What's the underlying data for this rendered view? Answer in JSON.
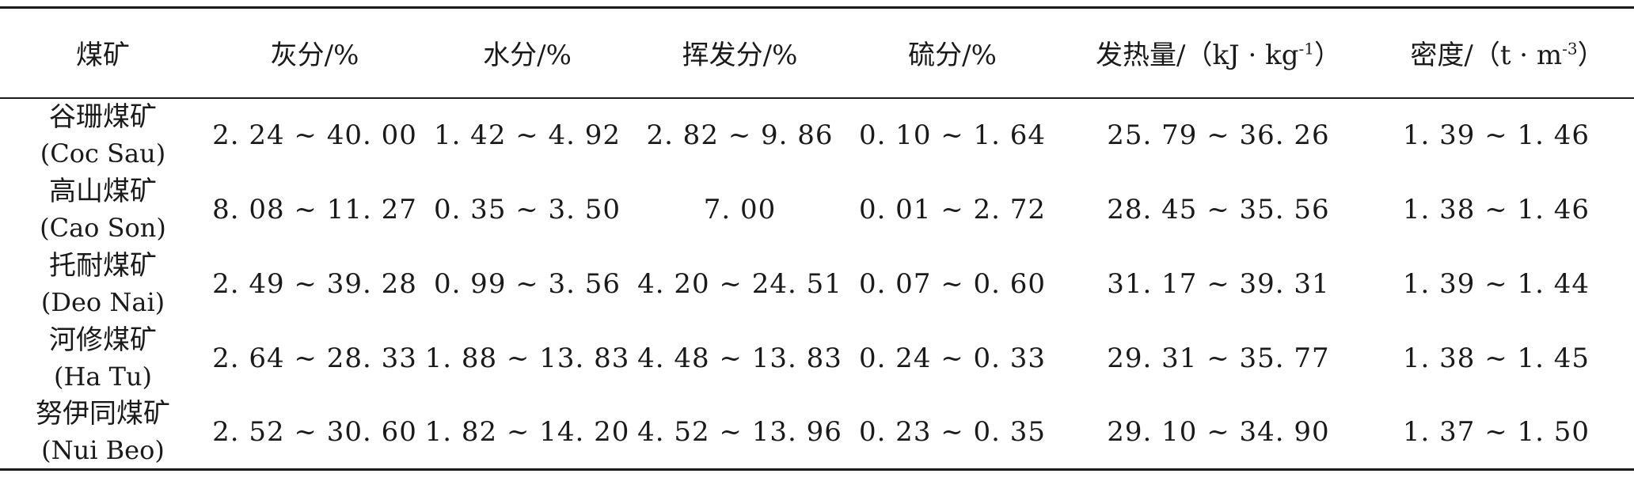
{
  "table": {
    "headers": [
      {
        "key": "mine",
        "label": "煤矿",
        "unit_base": "",
        "unit_sup": "",
        "unit_end": ""
      },
      {
        "key": "ash",
        "label": "灰分/%",
        "unit_base": "",
        "unit_sup": "",
        "unit_end": ""
      },
      {
        "key": "moisture",
        "label": "水分/%",
        "unit_base": "",
        "unit_sup": "",
        "unit_end": ""
      },
      {
        "key": "volatile",
        "label": "挥发分/%",
        "unit_base": "",
        "unit_sup": "",
        "unit_end": ""
      },
      {
        "key": "sulfur",
        "label": "硫分/%",
        "unit_base": "",
        "unit_sup": "",
        "unit_end": ""
      },
      {
        "key": "calorific",
        "label": "发热量/（kJ · kg",
        "unit_base": "",
        "unit_sup": "-1",
        "unit_end": "）"
      },
      {
        "key": "density",
        "label": "密度/（t · m",
        "unit_base": "",
        "unit_sup": "-3",
        "unit_end": "）"
      }
    ],
    "rows": [
      {
        "mine_cn": "谷珊煤矿",
        "mine_en": "(Coc Sau)",
        "ash": "2. 24 ~ 40. 00",
        "moisture": "1. 42 ~ 4. 92",
        "volatile": "2. 82 ~ 9. 86",
        "sulfur": "0. 10 ~ 1. 64",
        "calorific": "25. 79 ~ 36. 26",
        "density": "1. 39 ~ 1. 46"
      },
      {
        "mine_cn": "高山煤矿",
        "mine_en": "(Cao Son)",
        "ash": "8. 08 ~ 11. 27",
        "moisture": "0. 35 ~ 3. 50",
        "volatile": "7. 00",
        "sulfur": "0. 01 ~ 2. 72",
        "calorific": "28. 45 ~ 35. 56",
        "density": "1. 38 ~ 1. 46"
      },
      {
        "mine_cn": "托耐煤矿",
        "mine_en": "(Deo Nai)",
        "ash": "2. 49 ~ 39. 28",
        "moisture": "0. 99 ~ 3. 56",
        "volatile": "4. 20 ~ 24. 51",
        "sulfur": "0. 07 ~ 0. 60",
        "calorific": "31. 17 ~ 39. 31",
        "density": "1. 39 ~ 1. 44"
      },
      {
        "mine_cn": "河修煤矿",
        "mine_en": "(Ha Tu)",
        "ash": "2. 64 ~ 28. 33",
        "moisture": "1. 88 ~ 13. 83",
        "volatile": "4. 48 ~ 13. 83",
        "sulfur": "0. 24 ~ 0. 33",
        "calorific": "29. 31 ~ 35. 77",
        "density": "1. 38 ~ 1. 45"
      },
      {
        "mine_cn": "努伊同煤矿",
        "mine_en": "(Nui Beo)",
        "ash": "2. 52 ~ 30. 60",
        "moisture": "1. 82 ~ 14. 20",
        "volatile": "4. 52 ~ 13. 96",
        "sulfur": "0. 23 ~ 0. 35",
        "calorific": "29. 10 ~ 34. 90",
        "density": "1. 37 ~ 1. 50"
      }
    ]
  }
}
